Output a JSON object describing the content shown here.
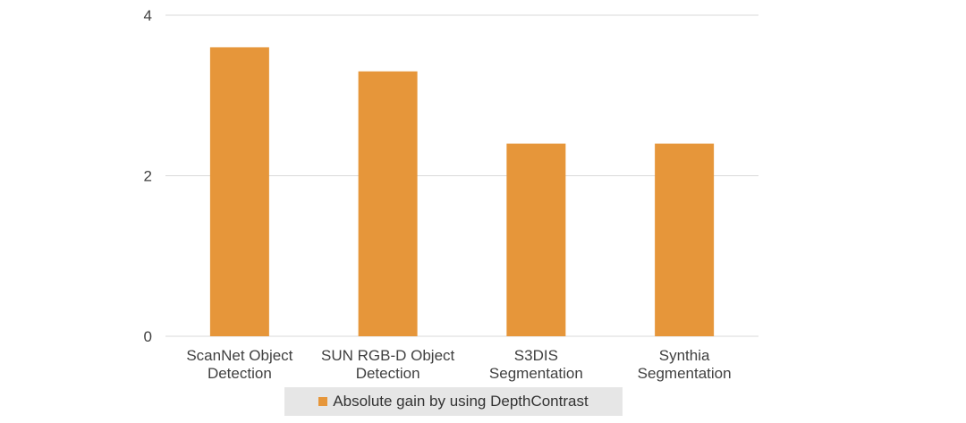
{
  "chart_data": {
    "type": "bar",
    "categories": [
      [
        "ScanNet Object",
        "Detection"
      ],
      [
        "SUN RGB-D Object",
        "Detection"
      ],
      [
        "S3DIS",
        "Segmentation"
      ],
      [
        "Synthia",
        "Segmentation"
      ]
    ],
    "series": [
      {
        "name": "Absolute gain by using DepthContrast",
        "values": [
          3.6,
          3.3,
          2.4,
          2.4
        ],
        "color": "#e6963a"
      }
    ],
    "yticks": [
      "0",
      "2",
      "4"
    ],
    "ylim": [
      0,
      4
    ],
    "grid": true,
    "legend_position": "bottom"
  }
}
